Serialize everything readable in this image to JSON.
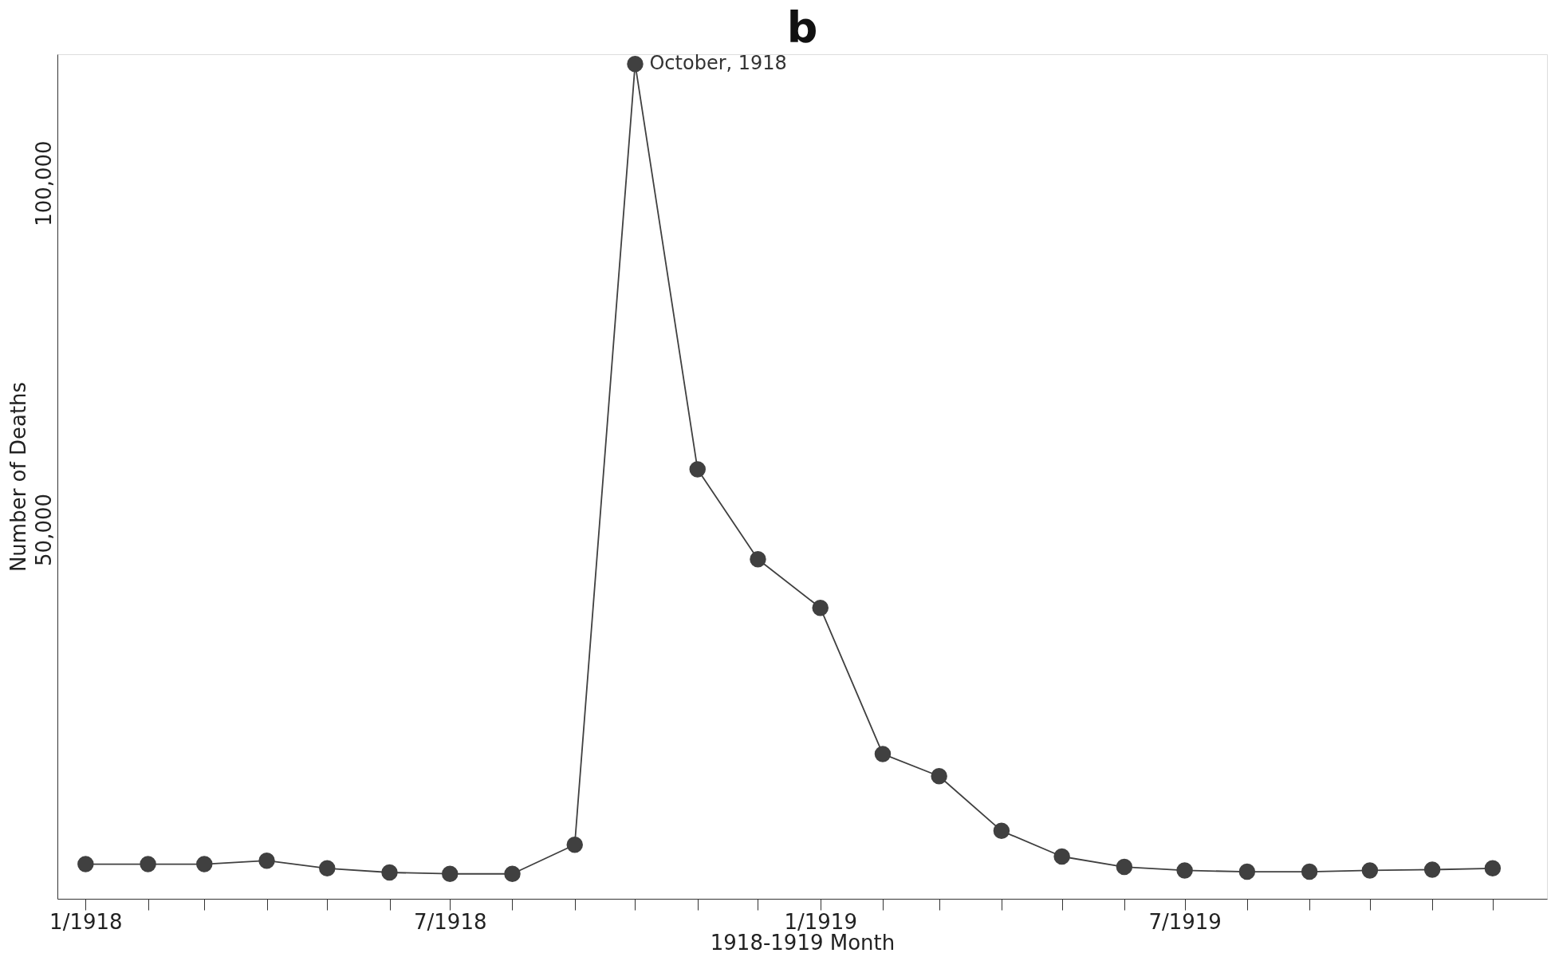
{
  "chart_data": {
    "type": "line",
    "title": "b",
    "xlabel": "1918-1919 Month",
    "ylabel": "Number of Deaths",
    "x": [
      "1918-01",
      "1918-02",
      "1918-03",
      "1918-04",
      "1918-05",
      "1918-06",
      "1918-07",
      "1918-08",
      "1918-09",
      "1918-10",
      "1918-11",
      "1918-12",
      "1919-01",
      "1919-02",
      "1919-03",
      "1919-04",
      "1919-05",
      "1919-06",
      "1919-07",
      "1919-08",
      "1919-09",
      "1919-10",
      "1919-11",
      "1919-12"
    ],
    "series": [
      {
        "color": "#404040",
        "values": [
          1700,
          1700,
          1700,
          2200,
          1100,
          500,
          300,
          300,
          4500,
          117200,
          58700,
          45700,
          38700,
          17600,
          14400,
          6500,
          2800,
          1300,
          800,
          600,
          600,
          800,
          900,
          1100
        ]
      }
    ],
    "xlim": [
      "1917-12-18",
      "1919-12-28"
    ],
    "xticks": [
      {
        "value": "1918-01",
        "label": "1/1918"
      },
      {
        "value": "1918-02",
        "label": null
      },
      {
        "value": "1918-03",
        "label": null
      },
      {
        "value": "1918-04",
        "label": null
      },
      {
        "value": "1918-05",
        "label": null
      },
      {
        "value": "1918-06",
        "label": null
      },
      {
        "value": "1918-07",
        "label": "7/1918"
      },
      {
        "value": "1918-08",
        "label": null
      },
      {
        "value": "1918-09",
        "label": null
      },
      {
        "value": "1918-10",
        "label": null
      },
      {
        "value": "1918-11",
        "label": null
      },
      {
        "value": "1918-12",
        "label": null
      },
      {
        "value": "1919-01",
        "label": "1/1919"
      },
      {
        "value": "1919-02",
        "label": null
      },
      {
        "value": "1919-03",
        "label": null
      },
      {
        "value": "1919-04",
        "label": null
      },
      {
        "value": "1919-05",
        "label": null
      },
      {
        "value": "1919-06",
        "label": null
      },
      {
        "value": "1919-07",
        "label": "7/1919"
      },
      {
        "value": "1919-08",
        "label": null
      },
      {
        "value": "1919-09",
        "label": null
      },
      {
        "value": "1919-10",
        "label": null
      },
      {
        "value": "1919-11",
        "label": null
      },
      {
        "value": "1919-12",
        "label": null
      }
    ],
    "ylim": [
      -3300,
      118600
    ],
    "yticks": [
      {
        "value": 50000,
        "label": "50,000"
      },
      {
        "value": 100000,
        "label": "100,000"
      }
    ],
    "annotations": [
      {
        "text": "October, 1918",
        "x": "1918-10",
        "y": 117200
      }
    ],
    "marker": "circle",
    "line_style": "solid",
    "grid": false
  }
}
